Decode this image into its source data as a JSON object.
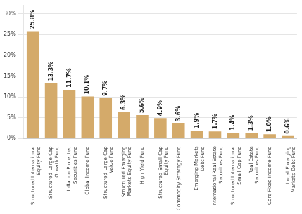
{
  "chart_data": {
    "type": "bar",
    "categories": [
      "Structured International\nEquity Fund",
      "Structured Large Cap\nGrowth Fund",
      "Inflation Protected\nSecurities Fund",
      "Global Income Fund",
      "Structured Large Cap\nValue Fund",
      "Structured Emerging\nMarkets Equity Fund",
      "High Yield Fund",
      "Structured Small Cap\nEquity Fund",
      "Commodity Strategy Fund",
      "Emerging Markets\nDebt Fund",
      "International Real Estate\nSecurities Fund",
      "Structured International\nSmall Cap Fund",
      "Real Estate\nSecurities Fund",
      "Core Fixed Income Fund",
      "Local Emerging\nMarkets Debt Fund"
    ],
    "values": [
      25.8,
      13.3,
      11.7,
      10.1,
      9.7,
      6.3,
      5.6,
      4.9,
      3.6,
      1.9,
      1.7,
      1.4,
      1.3,
      1.0,
      0.6
    ],
    "value_labels": [
      "25.8%",
      "13.3%",
      "11.7%",
      "10.1%",
      "9.7%",
      "6.3%",
      "5.6%",
      "4.9%",
      "3.6%",
      "1.9%",
      "1.7%",
      "1.4%",
      "1.3%",
      "1.0%",
      "0.6%"
    ],
    "data_labels": true,
    "color": "#D4AA6A",
    "ylim": [
      0,
      32
    ],
    "yticks": [
      {
        "value": 0,
        "label": "0%"
      },
      {
        "value": 5,
        "label": "5%"
      },
      {
        "value": 10,
        "label": "10%"
      },
      {
        "value": 15,
        "label": "15%"
      },
      {
        "value": 20,
        "label": "20%"
      },
      {
        "value": 25,
        "label": "25%"
      },
      {
        "value": 30,
        "label": "30%"
      }
    ],
    "grid": true
  }
}
